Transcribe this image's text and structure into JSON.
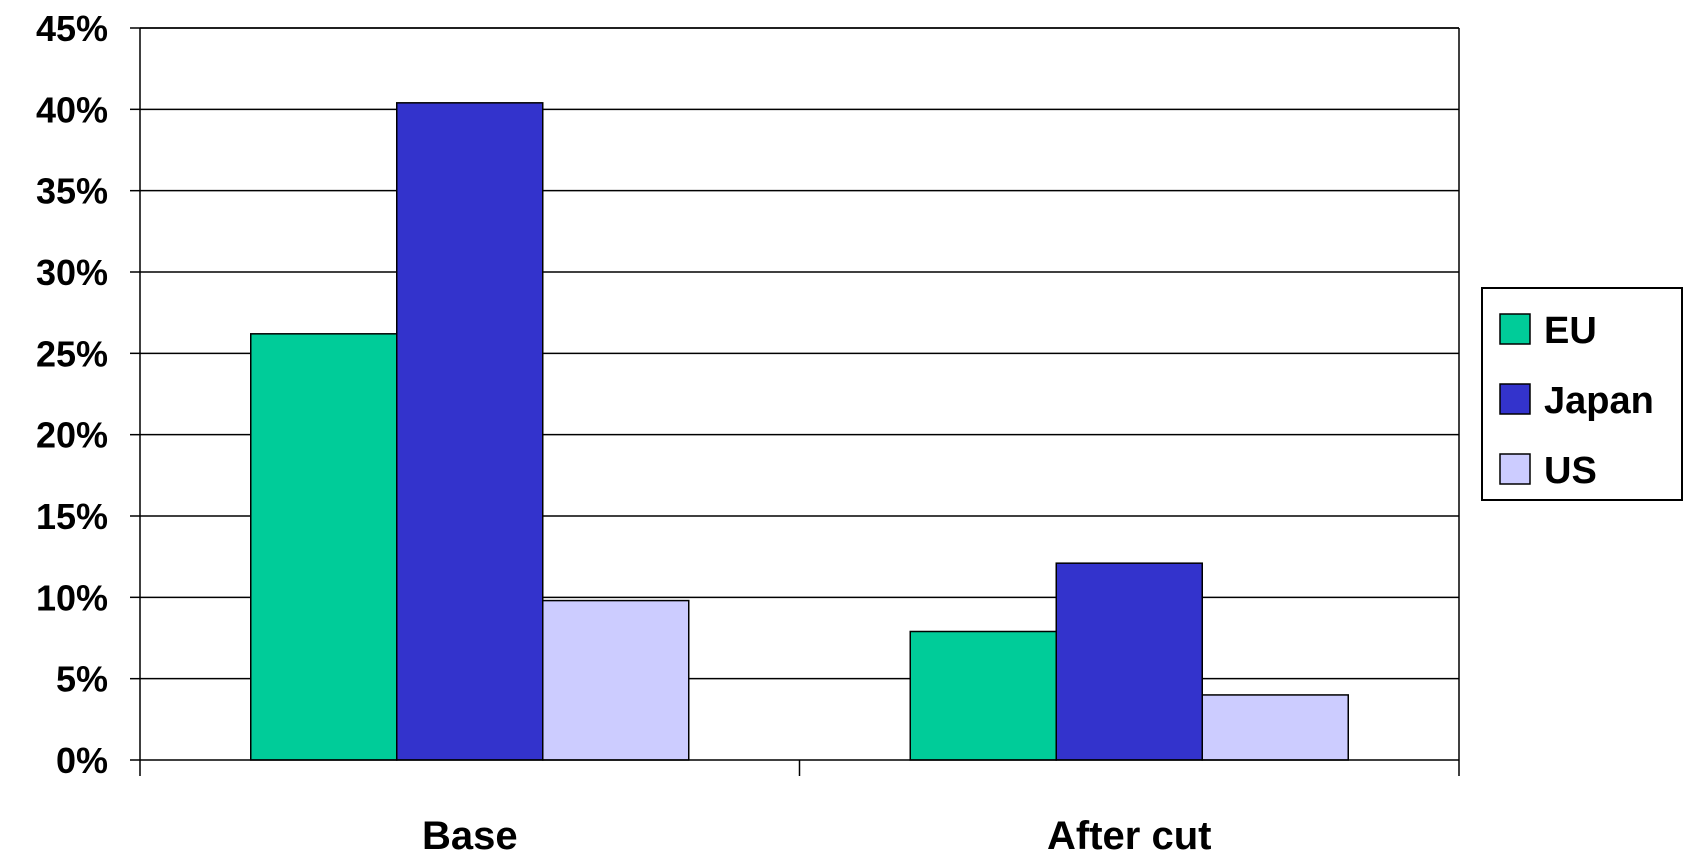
{
  "chart_data": {
    "type": "bar",
    "categories": [
      "Base",
      "After cut"
    ],
    "series": [
      {
        "name": "EU",
        "color": "#00CC99",
        "values": [
          26.2,
          7.9
        ]
      },
      {
        "name": "Japan",
        "color": "#3333CC",
        "values": [
          40.4,
          12.1
        ]
      },
      {
        "name": "US",
        "color": "#CCCCFF",
        "values": [
          9.8,
          4.0
        ]
      }
    ],
    "ylim": [
      0,
      45
    ],
    "yticks": [
      0,
      5,
      10,
      15,
      20,
      25,
      30,
      35,
      40,
      45
    ],
    "ytick_labels": [
      "0%",
      "5%",
      "10%",
      "15%",
      "20%",
      "25%",
      "30%",
      "35%",
      "40%",
      "45%"
    ],
    "grid": true,
    "legend_position": "right",
    "title": "",
    "xlabel": "",
    "ylabel": ""
  }
}
